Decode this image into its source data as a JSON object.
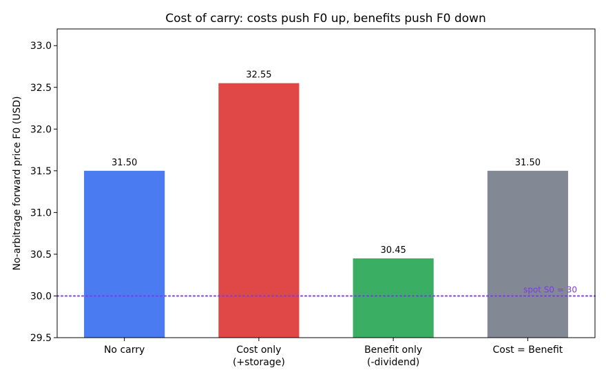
{
  "chart_data": {
    "type": "bar",
    "title": "Cost of carry: costs push F0 up, benefits push F0 down",
    "xlabel": "",
    "ylabel": "No-arbitrage forward price F0 (USD)",
    "ylim": [
      29.5,
      33.2
    ],
    "yticks": [
      "29.5",
      "30.0",
      "30.5",
      "31.0",
      "31.5",
      "32.0",
      "32.5",
      "33.0"
    ],
    "categories": [
      [
        "No carry"
      ],
      [
        "Cost only",
        "(+storage)"
      ],
      [
        "Benefit only",
        "(-dividend)"
      ],
      [
        "Cost = Benefit"
      ]
    ],
    "values": [
      31.5,
      32.55,
      30.45,
      31.5
    ],
    "value_labels": [
      "31.50",
      "32.55",
      "30.45",
      "31.50"
    ],
    "colors": [
      "#4a7bf0",
      "#e04848",
      "#3aaf63",
      "#828894"
    ],
    "reference_line": {
      "value": 30.0,
      "label": "spot S0 = 30",
      "color": "#7c3aed",
      "style": "dotted"
    },
    "grid": false,
    "legend": "none"
  }
}
